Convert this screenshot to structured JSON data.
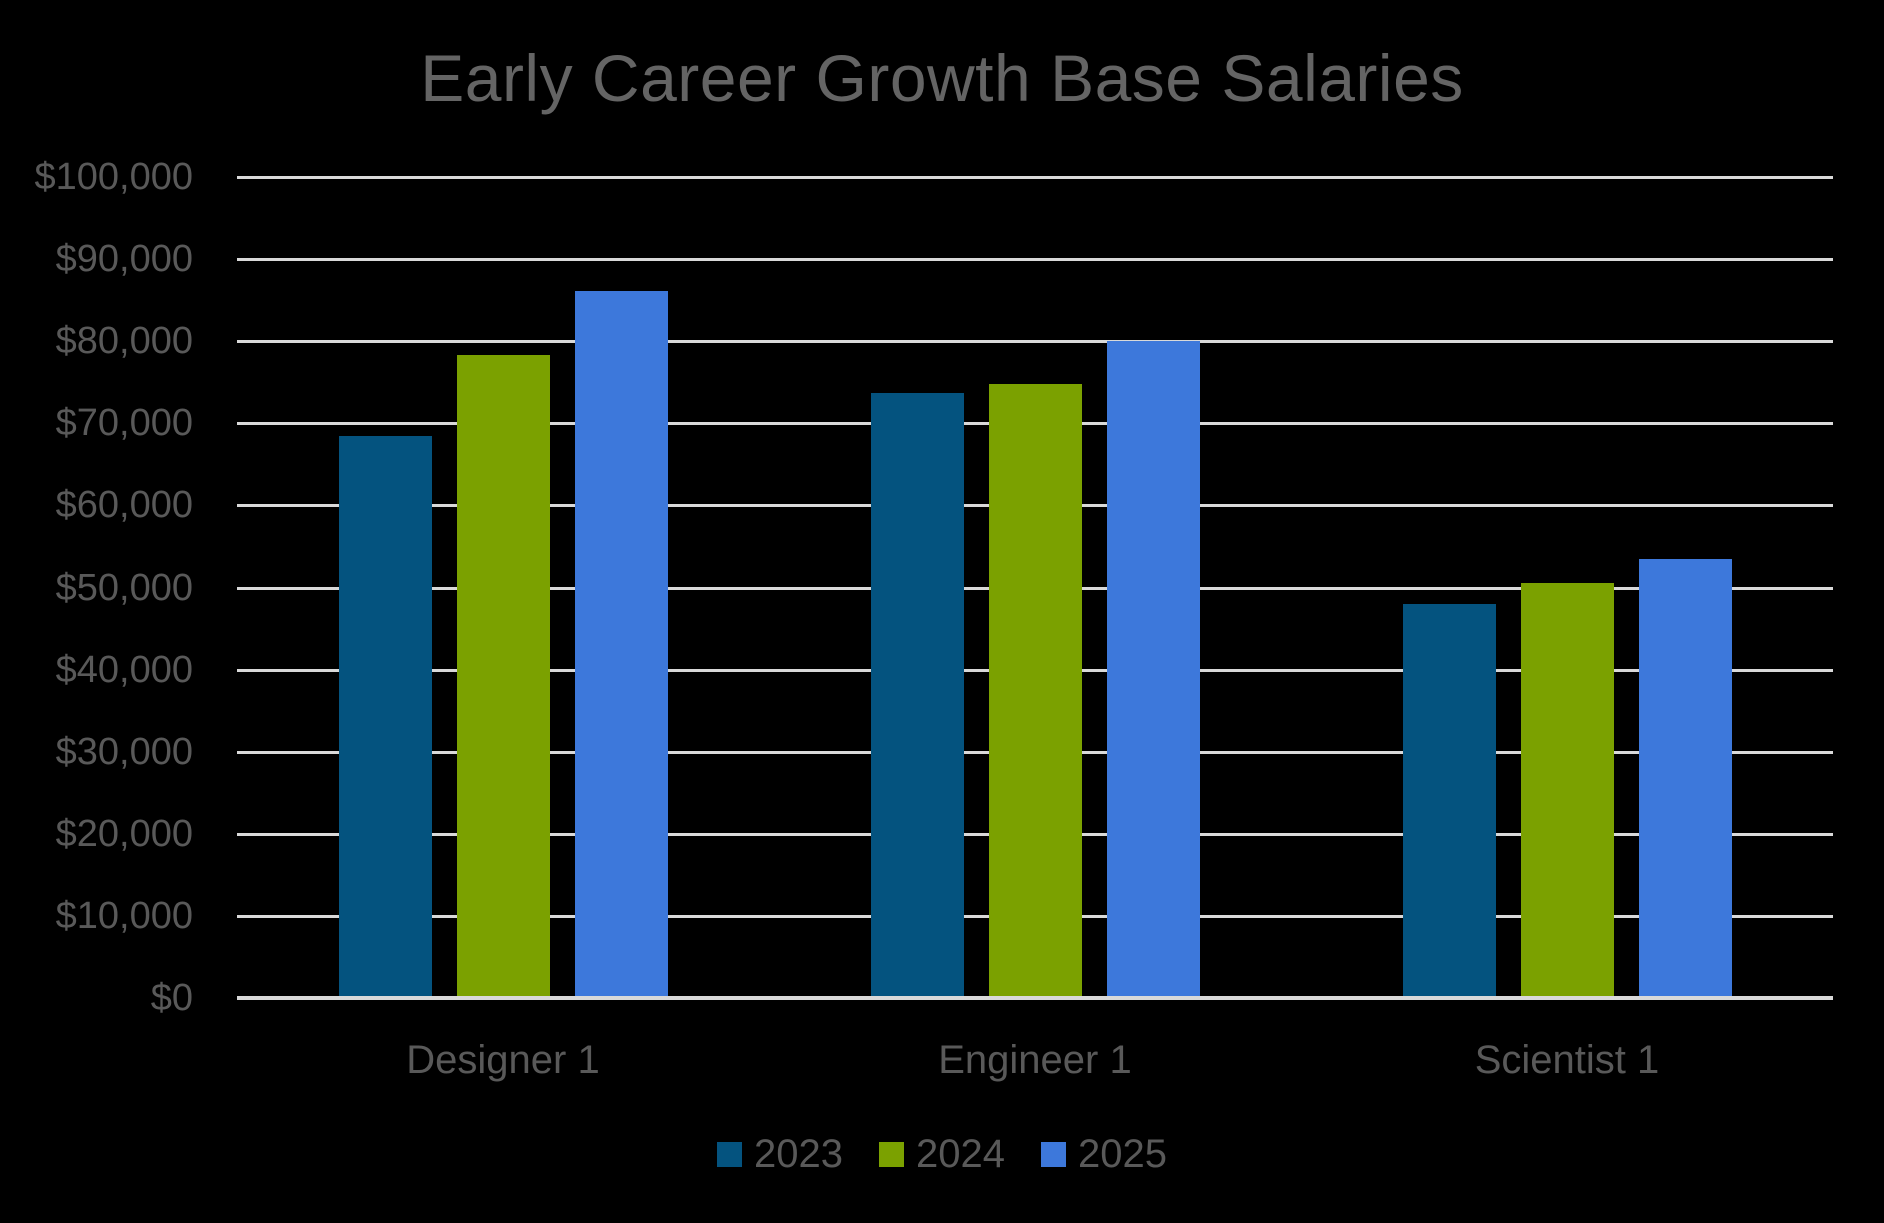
{
  "colors": {
    "background": "#000000",
    "title_text": "#646464",
    "axis_text": "#595959",
    "gridline": "#D9D9D9",
    "axis_line": "#D9D9D9"
  },
  "chart_data": {
    "type": "bar",
    "title": "Early Career Growth Base Salaries",
    "categories": [
      "Designer 1",
      "Engineer 1",
      "Scientist 1"
    ],
    "series": [
      {
        "name": "2023",
        "color": "#04537F",
        "values": [
          68500,
          73700,
          48000
        ]
      },
      {
        "name": "2024",
        "color": "#7BA100",
        "values": [
          78300,
          74800,
          50600
        ]
      },
      {
        "name": "2025",
        "color": "#3D78DB",
        "values": [
          86100,
          80000,
          53500
        ]
      }
    ],
    "xlabel": "",
    "ylabel": "",
    "ylim": [
      0,
      100000
    ],
    "y_tick_step": 10000,
    "y_tick_labels": [
      "$0",
      "$10,000",
      "$20,000",
      "$30,000",
      "$40,000",
      "$50,000",
      "$60,000",
      "$70,000",
      "$80,000",
      "$90,000",
      "$100,000"
    ],
    "grid": "horizontal",
    "legend_position": "bottom"
  }
}
